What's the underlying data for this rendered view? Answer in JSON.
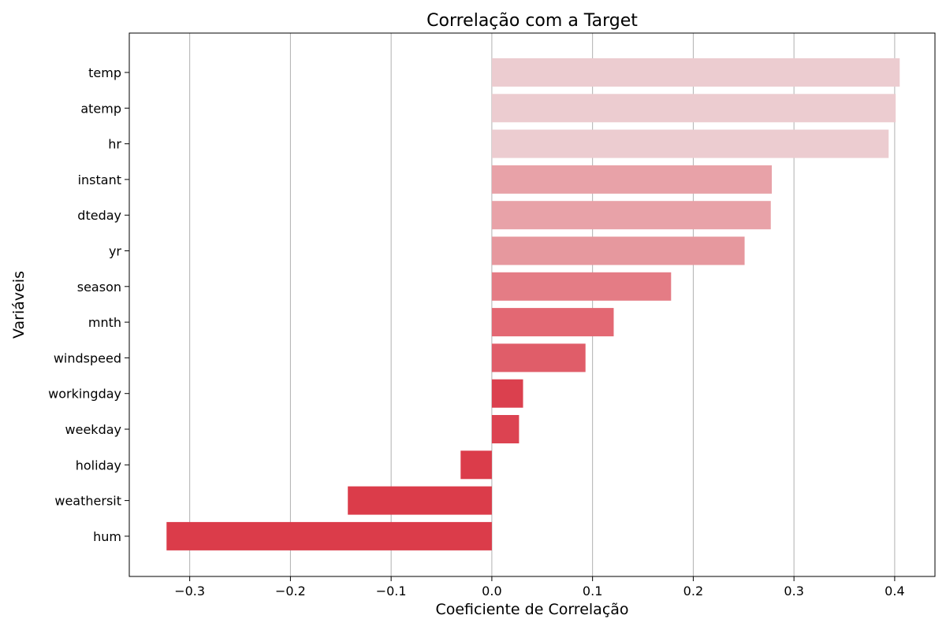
{
  "chart_data": {
    "type": "bar",
    "orientation": "horizontal",
    "title": "Correlação com a Target",
    "xlabel": "Coeficiente de Correlação",
    "ylabel": "Variáveis",
    "xlim": [
      -0.36,
      0.44
    ],
    "xticks": [
      -0.3,
      -0.2,
      -0.1,
      0.0,
      0.1,
      0.2,
      0.3,
      0.4
    ],
    "xtick_labels": [
      "−0.3",
      "−0.2",
      "−0.1",
      "0.0",
      "0.1",
      "0.2",
      "0.3",
      "0.4"
    ],
    "grid": "vertical",
    "categories": [
      "temp",
      "atemp",
      "hr",
      "instant",
      "dteday",
      "yr",
      "season",
      "mnth",
      "windspeed",
      "workingday",
      "weekday",
      "holiday",
      "weathersit",
      "hum"
    ],
    "values": [
      0.405,
      0.401,
      0.394,
      0.278,
      0.277,
      0.251,
      0.178,
      0.121,
      0.093,
      0.031,
      0.027,
      -0.031,
      -0.143,
      -0.323
    ],
    "colors": [
      "#ecccd0",
      "#ecccd0",
      "#ecccd0",
      "#e8a2a8",
      "#e8a2a8",
      "#e6989e",
      "#e47c85",
      "#e36873",
      "#e05d69",
      "#db404e",
      "#dc4351",
      "#db3c4a",
      "#db3c4a",
      "#db3c4a"
    ]
  }
}
